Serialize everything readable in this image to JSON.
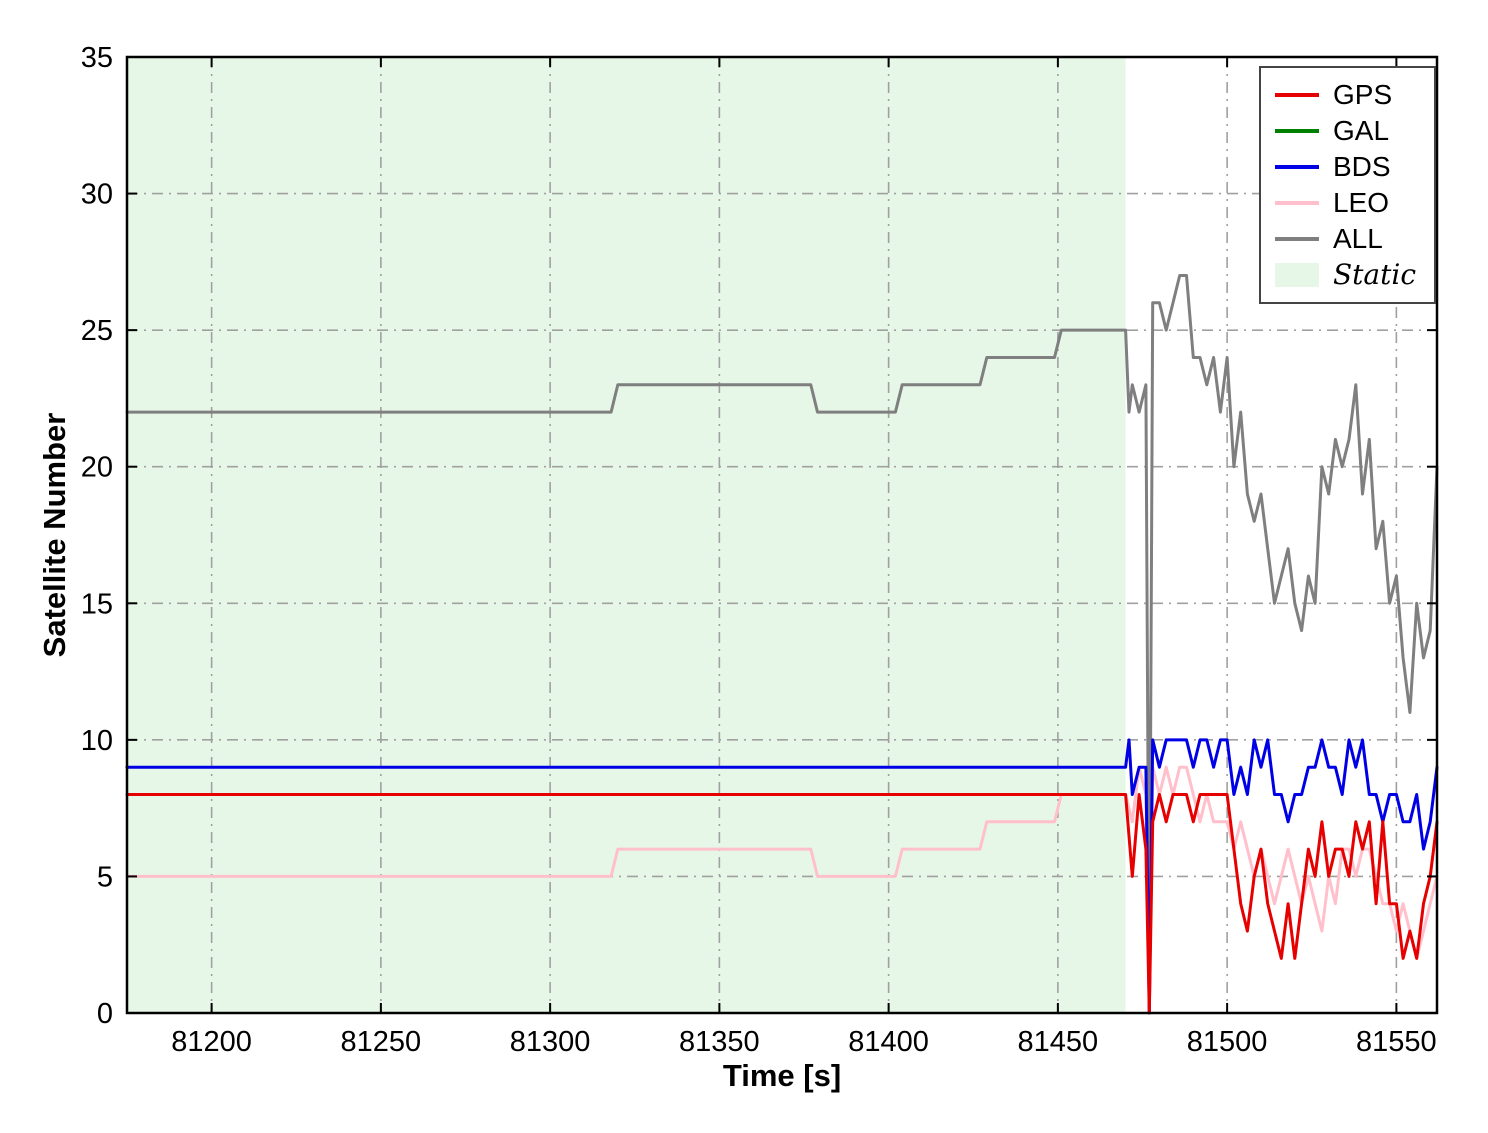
{
  "chart_data": {
    "type": "line",
    "title": "",
    "xlabel": "Time [s]",
    "ylabel": "Satellite Number",
    "xlim": [
      81175,
      81562
    ],
    "ylim": [
      0,
      35
    ],
    "x_ticks": [
      81200,
      81250,
      81300,
      81350,
      81400,
      81450,
      81500,
      81550
    ],
    "y_ticks": [
      0,
      5,
      10,
      15,
      20,
      25,
      30,
      35
    ],
    "grid": "dash-dot",
    "grid_color": "#a0a0a0",
    "static_region": {
      "label": "Static",
      "x_start": 81175,
      "x_end": 81470,
      "color": "#e7f7e7"
    },
    "series": [
      {
        "name": "ALL",
        "color": "#7f7f7f",
        "points": [
          [
            81175,
            22
          ],
          [
            81318,
            22
          ],
          [
            81320,
            23
          ],
          [
            81377,
            23
          ],
          [
            81379,
            22
          ],
          [
            81402,
            22
          ],
          [
            81404,
            23
          ],
          [
            81427,
            23
          ],
          [
            81429,
            24
          ],
          [
            81449,
            24
          ],
          [
            81451,
            25
          ],
          [
            81470,
            25
          ],
          [
            81471,
            22
          ],
          [
            81472,
            23
          ],
          [
            81474,
            22
          ],
          [
            81476,
            23
          ],
          [
            81477,
            0
          ],
          [
            81478,
            26
          ],
          [
            81480,
            26
          ],
          [
            81482,
            25
          ],
          [
            81484,
            26
          ],
          [
            81486,
            27
          ],
          [
            81488,
            27
          ],
          [
            81490,
            24
          ],
          [
            81492,
            24
          ],
          [
            81494,
            23
          ],
          [
            81496,
            24
          ],
          [
            81498,
            22
          ],
          [
            81500,
            24
          ],
          [
            81502,
            20
          ],
          [
            81504,
            22
          ],
          [
            81506,
            19
          ],
          [
            81508,
            18
          ],
          [
            81510,
            19
          ],
          [
            81512,
            17
          ],
          [
            81514,
            15
          ],
          [
            81516,
            16
          ],
          [
            81518,
            17
          ],
          [
            81520,
            15
          ],
          [
            81522,
            14
          ],
          [
            81524,
            16
          ],
          [
            81526,
            15
          ],
          [
            81528,
            20
          ],
          [
            81530,
            19
          ],
          [
            81532,
            21
          ],
          [
            81534,
            20
          ],
          [
            81536,
            21
          ],
          [
            81538,
            23
          ],
          [
            81540,
            19
          ],
          [
            81542,
            21
          ],
          [
            81544,
            17
          ],
          [
            81546,
            18
          ],
          [
            81548,
            15
          ],
          [
            81550,
            16
          ],
          [
            81552,
            13
          ],
          [
            81554,
            11
          ],
          [
            81556,
            15
          ],
          [
            81558,
            13
          ],
          [
            81560,
            14
          ],
          [
            81562,
            20
          ]
        ]
      },
      {
        "name": "LEO",
        "color": "#ffc0cb",
        "points": [
          [
            81175,
            5
          ],
          [
            81318,
            5
          ],
          [
            81320,
            6
          ],
          [
            81377,
            6
          ],
          [
            81379,
            5
          ],
          [
            81402,
            5
          ],
          [
            81404,
            6
          ],
          [
            81427,
            6
          ],
          [
            81429,
            7
          ],
          [
            81449,
            7
          ],
          [
            81451,
            8
          ],
          [
            81470,
            8
          ],
          [
            81472,
            7
          ],
          [
            81474,
            9
          ],
          [
            81476,
            8
          ],
          [
            81477,
            0
          ],
          [
            81478,
            9
          ],
          [
            81480,
            8
          ],
          [
            81482,
            9
          ],
          [
            81484,
            8
          ],
          [
            81486,
            9
          ],
          [
            81488,
            9
          ],
          [
            81490,
            8
          ],
          [
            81492,
            7
          ],
          [
            81494,
            8
          ],
          [
            81496,
            7
          ],
          [
            81498,
            7
          ],
          [
            81500,
            7
          ],
          [
            81502,
            6
          ],
          [
            81504,
            7
          ],
          [
            81506,
            6
          ],
          [
            81508,
            5
          ],
          [
            81510,
            6
          ],
          [
            81512,
            5
          ],
          [
            81514,
            4
          ],
          [
            81516,
            5
          ],
          [
            81518,
            6
          ],
          [
            81520,
            5
          ],
          [
            81522,
            4
          ],
          [
            81524,
            5
          ],
          [
            81526,
            4
          ],
          [
            81528,
            3
          ],
          [
            81530,
            5
          ],
          [
            81532,
            4
          ],
          [
            81534,
            6
          ],
          [
            81536,
            6
          ],
          [
            81538,
            5
          ],
          [
            81540,
            6
          ],
          [
            81542,
            6
          ],
          [
            81544,
            5
          ],
          [
            81546,
            4
          ],
          [
            81548,
            4
          ],
          [
            81550,
            3
          ],
          [
            81552,
            4
          ],
          [
            81554,
            3
          ],
          [
            81556,
            2
          ],
          [
            81558,
            3
          ],
          [
            81560,
            4
          ],
          [
            81562,
            5
          ]
        ]
      },
      {
        "name": "BDS",
        "color": "#0000e6",
        "points": [
          [
            81175,
            9
          ],
          [
            81470,
            9
          ],
          [
            81471,
            10
          ],
          [
            81472,
            8
          ],
          [
            81474,
            9
          ],
          [
            81476,
            9
          ],
          [
            81477,
            0
          ],
          [
            81478,
            10
          ],
          [
            81480,
            9
          ],
          [
            81482,
            10
          ],
          [
            81484,
            10
          ],
          [
            81486,
            10
          ],
          [
            81488,
            10
          ],
          [
            81490,
            9
          ],
          [
            81492,
            10
          ],
          [
            81494,
            10
          ],
          [
            81496,
            9
          ],
          [
            81498,
            10
          ],
          [
            81500,
            10
          ],
          [
            81502,
            8
          ],
          [
            81504,
            9
          ],
          [
            81506,
            8
          ],
          [
            81508,
            10
          ],
          [
            81510,
            9
          ],
          [
            81512,
            10
          ],
          [
            81514,
            8
          ],
          [
            81516,
            8
          ],
          [
            81518,
            7
          ],
          [
            81520,
            8
          ],
          [
            81522,
            8
          ],
          [
            81524,
            9
          ],
          [
            81526,
            9
          ],
          [
            81528,
            10
          ],
          [
            81530,
            9
          ],
          [
            81532,
            9
          ],
          [
            81534,
            8
          ],
          [
            81536,
            10
          ],
          [
            81538,
            9
          ],
          [
            81540,
            10
          ],
          [
            81542,
            8
          ],
          [
            81544,
            8
          ],
          [
            81546,
            7
          ],
          [
            81548,
            8
          ],
          [
            81550,
            8
          ],
          [
            81552,
            7
          ],
          [
            81554,
            7
          ],
          [
            81556,
            8
          ],
          [
            81558,
            6
          ],
          [
            81560,
            7
          ],
          [
            81562,
            9
          ]
        ]
      },
      {
        "name": "GAL",
        "color": "#008000",
        "points": []
      },
      {
        "name": "GPS",
        "color": "#e60000",
        "points": [
          [
            81175,
            8
          ],
          [
            81470,
            8
          ],
          [
            81472,
            5
          ],
          [
            81474,
            8
          ],
          [
            81476,
            6
          ],
          [
            81477,
            0
          ],
          [
            81478,
            7
          ],
          [
            81480,
            8
          ],
          [
            81482,
            7
          ],
          [
            81484,
            8
          ],
          [
            81486,
            8
          ],
          [
            81488,
            8
          ],
          [
            81490,
            7
          ],
          [
            81492,
            8
          ],
          [
            81494,
            8
          ],
          [
            81496,
            8
          ],
          [
            81498,
            8
          ],
          [
            81500,
            8
          ],
          [
            81502,
            6
          ],
          [
            81504,
            4
          ],
          [
            81506,
            3
          ],
          [
            81508,
            5
          ],
          [
            81510,
            6
          ],
          [
            81512,
            4
          ],
          [
            81514,
            3
          ],
          [
            81516,
            2
          ],
          [
            81518,
            4
          ],
          [
            81520,
            2
          ],
          [
            81522,
            4
          ],
          [
            81524,
            6
          ],
          [
            81526,
            5
          ],
          [
            81528,
            7
          ],
          [
            81530,
            5
          ],
          [
            81532,
            6
          ],
          [
            81534,
            6
          ],
          [
            81536,
            5
          ],
          [
            81538,
            7
          ],
          [
            81540,
            6
          ],
          [
            81542,
            7
          ],
          [
            81544,
            4
          ],
          [
            81546,
            7
          ],
          [
            81548,
            4
          ],
          [
            81550,
            4
          ],
          [
            81552,
            2
          ],
          [
            81554,
            3
          ],
          [
            81556,
            2
          ],
          [
            81558,
            4
          ],
          [
            81560,
            5
          ],
          [
            81562,
            7
          ]
        ]
      }
    ],
    "legend": {
      "position": "top-right",
      "entries": [
        {
          "label": "GPS",
          "color": "#e60000",
          "type": "line",
          "italic": false
        },
        {
          "label": "GAL",
          "color": "#008000",
          "type": "line",
          "italic": false
        },
        {
          "label": "BDS",
          "color": "#0000e6",
          "type": "line",
          "italic": false
        },
        {
          "label": "LEO",
          "color": "#ffc0cb",
          "type": "line",
          "italic": false
        },
        {
          "label": "ALL",
          "color": "#7f7f7f",
          "type": "line",
          "italic": false
        },
        {
          "label": "Static",
          "color": "#e7f7e7",
          "type": "patch",
          "italic": true
        }
      ]
    }
  }
}
